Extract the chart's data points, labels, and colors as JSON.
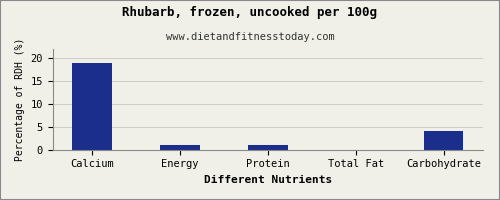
{
  "title": "Rhubarb, frozen, uncooked per 100g",
  "subtitle": "www.dietandfitnesstoday.com",
  "xlabel": "Different Nutrients",
  "ylabel": "Percentage of RDH (%)",
  "categories": [
    "Calcium",
    "Energy",
    "Protein",
    "Total Fat",
    "Carbohydrate"
  ],
  "values": [
    19,
    1,
    1,
    0,
    4
  ],
  "bar_color": "#1B2E8C",
  "ylim": [
    0,
    22
  ],
  "yticks": [
    0,
    5,
    10,
    15,
    20
  ],
  "background_color": "#F0F0E8",
  "border_color": "#888888",
  "title_fontsize": 9,
  "subtitle_fontsize": 7.5,
  "xlabel_fontsize": 8,
  "ylabel_fontsize": 7,
  "tick_fontsize": 7.5,
  "grid_color": "#CCCCCC"
}
